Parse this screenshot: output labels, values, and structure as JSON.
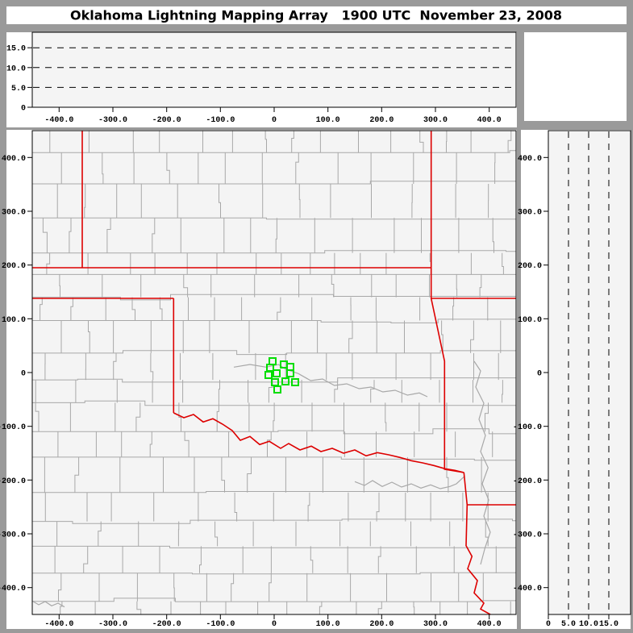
{
  "window": {
    "title": "Oklahoma Lightning Mapping Array   1900 UTC  November 23, 2008"
  },
  "colors": {
    "frame": "#9a9a9a",
    "panel_white": "#ffffff",
    "plot_bg": "#f4f4f4",
    "axis": "#000000",
    "grid_dash": "#000000",
    "county_line": "#a8a8a8",
    "river": "#a8a8a8",
    "state_border": "#dd0000",
    "station": "#00dd00"
  },
  "ew_altitude_panel": {
    "y_tick_labels": [
      "0",
      "5.0",
      "10.0",
      "15.0"
    ],
    "y_tick_values": [
      0,
      5,
      10,
      15
    ],
    "gridline_altitudes_km": [
      5,
      10,
      15
    ],
    "alt_range_km": [
      0,
      18.9
    ],
    "x_tick_labels": [
      "-400.0",
      "-300.0",
      "-200.0",
      "-100.0",
      "0",
      "100.0",
      "200.0",
      "300.0",
      "400.0"
    ],
    "x_tick_values": [
      -400,
      -300,
      -200,
      -100,
      0,
      100,
      200,
      300,
      400
    ],
    "data_points": []
  },
  "corner_panel": {},
  "map_panel": {
    "x_range_km": [
      -450,
      450
    ],
    "y_range_km": [
      -450,
      450
    ],
    "x_tick_labels": [
      "-400.0",
      "-300.0",
      "-200.0",
      "-100.0",
      "0",
      "100.0",
      "200.0",
      "300.0",
      "400.0"
    ],
    "x_tick_values": [
      -400,
      -300,
      -200,
      -100,
      0,
      100,
      200,
      300,
      400
    ],
    "y_tick_labels": [
      "400.0",
      "300.0",
      "200.0",
      "100.0",
      "0",
      "-100.0",
      "-200.0",
      "-300.0",
      "-400.0"
    ],
    "y_tick_values": [
      400,
      300,
      200,
      100,
      0,
      -100,
      -200,
      -300,
      -400
    ],
    "stations_km": [
      [
        -3,
        21
      ],
      [
        18,
        15
      ],
      [
        30,
        10.5
      ],
      [
        -7.5,
        9
      ],
      [
        -10.5,
        -4.5
      ],
      [
        4.5,
        -1.5
      ],
      [
        30,
        -1.5
      ],
      [
        1.5,
        -18
      ],
      [
        21,
        -16.5
      ],
      [
        39,
        -18
      ],
      [
        6,
        -31.5
      ]
    ],
    "state_borders_km": [
      [
        [
          -357,
          450
        ],
        [
          -357,
          195
        ]
      ],
      [
        [
          -450,
          195
        ],
        [
          292,
          195
        ]
      ],
      [
        [
          292,
          450
        ],
        [
          292,
          138
        ],
        [
          317,
          21
        ],
        [
          317,
          -180
        ],
        [
          353,
          -186
        ]
      ],
      [
        [
          292,
          138
        ],
        [
          450,
          138
        ]
      ],
      [
        [
          -450,
          138
        ],
        [
          -187,
          138
        ]
      ],
      [
        [
          -187,
          138
        ],
        [
          -187,
          -75
        ]
      ],
      [
        [
          -187,
          -75
        ],
        [
          -168,
          -84
        ],
        [
          -150,
          -78
        ],
        [
          -132,
          -92
        ],
        [
          -114,
          -86
        ],
        [
          -96,
          -96
        ],
        [
          -78,
          -108
        ],
        [
          -63,
          -126
        ],
        [
          -45,
          -119
        ],
        [
          -27,
          -134
        ],
        [
          -9,
          -128
        ],
        [
          12,
          -141
        ],
        [
          27,
          -132
        ],
        [
          48,
          -144
        ],
        [
          69,
          -137
        ],
        [
          87,
          -147
        ],
        [
          108,
          -141
        ],
        [
          129,
          -150
        ],
        [
          150,
          -144
        ],
        [
          171,
          -155
        ],
        [
          192,
          -149
        ],
        [
          213,
          -153
        ],
        [
          234,
          -158
        ],
        [
          255,
          -164
        ],
        [
          276,
          -168
        ],
        [
          297,
          -173
        ],
        [
          318,
          -179
        ],
        [
          336,
          -182
        ],
        [
          353,
          -186
        ]
      ],
      [
        [
          353,
          -186
        ],
        [
          359,
          -246
        ],
        [
          357,
          -322
        ],
        [
          368,
          -342
        ],
        [
          360,
          -365
        ],
        [
          378,
          -387
        ],
        [
          372,
          -410
        ],
        [
          390,
          -429
        ],
        [
          384,
          -440
        ],
        [
          402,
          -450
        ]
      ],
      [
        [
          359,
          -246
        ],
        [
          450,
          -246
        ]
      ]
    ],
    "rivers_km": [
      [
        [
          -75,
          10
        ],
        [
          -45,
          15
        ],
        [
          -15,
          10
        ],
        [
          8,
          15
        ],
        [
          22,
          6
        ],
        [
          45,
          -2
        ],
        [
          68,
          -15
        ],
        [
          90,
          -12
        ],
        [
          112,
          -24
        ],
        [
          135,
          -21
        ],
        [
          158,
          -30
        ],
        [
          180,
          -27
        ],
        [
          202,
          -36
        ],
        [
          225,
          -33
        ],
        [
          248,
          -42
        ],
        [
          270,
          -38
        ],
        [
          285,
          -45
        ]
      ],
      [
        [
          150,
          -203
        ],
        [
          168,
          -210
        ],
        [
          183,
          -201
        ],
        [
          201,
          -212
        ],
        [
          219,
          -204
        ],
        [
          237,
          -213
        ],
        [
          255,
          -207
        ],
        [
          273,
          -215
        ],
        [
          291,
          -209
        ],
        [
          309,
          -216
        ],
        [
          327,
          -212
        ],
        [
          339,
          -207
        ],
        [
          353,
          -194
        ]
      ],
      [
        [
          372,
          21
        ],
        [
          384,
          3
        ],
        [
          375,
          -27
        ],
        [
          390,
          -57
        ],
        [
          381,
          -87
        ],
        [
          393,
          -117
        ],
        [
          384,
          -147
        ],
        [
          398,
          -177
        ],
        [
          387,
          -207
        ],
        [
          399,
          -237
        ],
        [
          390,
          -267
        ],
        [
          402,
          -297
        ],
        [
          392,
          -327
        ],
        [
          384,
          -357
        ]
      ],
      [
        [
          -450,
          -425
        ],
        [
          -438,
          -432
        ],
        [
          -426,
          -426
        ],
        [
          -414,
          -434
        ],
        [
          -402,
          -429
        ],
        [
          -390,
          -436
        ]
      ]
    ],
    "county_grid": {
      "seed": 1234,
      "row_min": 26,
      "row_var": 18,
      "col_min": 30,
      "col_var": 26
    }
  },
  "ns_altitude_panel": {
    "x_tick_labels": [
      "0",
      "5.0",
      "10.0",
      "15.0"
    ],
    "x_tick_values": [
      0,
      5,
      10,
      15
    ],
    "gridline_altitudes_km": [
      5,
      10,
      15
    ],
    "alt_range_km": [
      0,
      20.4
    ],
    "y_tick_labels": [
      "400.0",
      "300.0",
      "200.0",
      "100.0",
      "0",
      "-100.0",
      "-200.0",
      "-300.0",
      "-400.0"
    ],
    "y_tick_values": [
      400,
      300,
      200,
      100,
      0,
      -100,
      -200,
      -300,
      -400
    ],
    "data_points": []
  }
}
